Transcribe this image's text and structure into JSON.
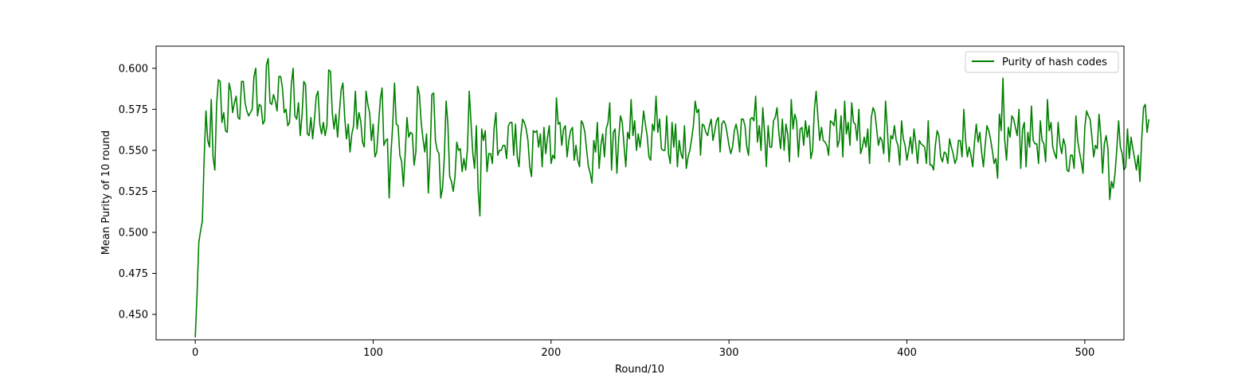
{
  "chart_data": {
    "type": "line",
    "title": "",
    "xlabel": "Round/10",
    "ylabel": "Mean Purity of 10 round",
    "xlim": [
      -22,
      522
    ],
    "ylim": [
      0.4345,
      0.6135
    ],
    "xticks": [
      0,
      100,
      200,
      300,
      400,
      500
    ],
    "yticks": [
      0.45,
      0.475,
      0.5,
      0.525,
      0.55,
      0.575,
      0.6
    ],
    "grid": false,
    "legend_position": "top-right",
    "colors": {
      "series": "#008000"
    },
    "series": [
      {
        "name": "Purity of hash codes",
        "x_start": 0,
        "x_step": 1,
        "values": [
          0.436,
          0.462,
          0.494,
          0.501,
          0.507,
          0.545,
          0.574,
          0.556,
          0.552,
          0.581,
          0.546,
          0.538,
          0.578,
          0.593,
          0.592,
          0.567,
          0.573,
          0.562,
          0.561,
          0.591,
          0.586,
          0.573,
          0.579,
          0.583,
          0.57,
          0.569,
          0.592,
          0.592,
          0.579,
          0.574,
          0.571,
          0.573,
          0.575,
          0.595,
          0.6,
          0.571,
          0.578,
          0.577,
          0.566,
          0.568,
          0.602,
          0.606,
          0.579,
          0.578,
          0.584,
          0.58,
          0.574,
          0.595,
          0.595,
          0.588,
          0.573,
          0.575,
          0.565,
          0.567,
          0.59,
          0.6,
          0.571,
          0.569,
          0.579,
          0.559,
          0.571,
          0.592,
          0.59,
          0.56,
          0.559,
          0.57,
          0.557,
          0.569,
          0.583,
          0.586,
          0.566,
          0.56,
          0.567,
          0.559,
          0.565,
          0.599,
          0.598,
          0.573,
          0.563,
          0.572,
          0.558,
          0.573,
          0.587,
          0.591,
          0.57,
          0.557,
          0.566,
          0.549,
          0.56,
          0.565,
          0.586,
          0.563,
          0.573,
          0.568,
          0.555,
          0.552,
          0.586,
          0.578,
          0.573,
          0.556,
          0.566,
          0.546,
          0.549,
          0.565,
          0.581,
          0.588,
          0.553,
          0.556,
          0.557,
          0.521,
          0.548,
          0.566,
          0.591,
          0.566,
          0.565,
          0.547,
          0.543,
          0.528,
          0.548,
          0.57,
          0.558,
          0.561,
          0.56,
          0.541,
          0.549,
          0.589,
          0.584,
          0.567,
          0.557,
          0.549,
          0.56,
          0.524,
          0.546,
          0.584,
          0.585,
          0.556,
          0.55,
          0.548,
          0.521,
          0.527,
          0.546,
          0.58,
          0.566,
          0.534,
          0.531,
          0.525,
          0.534,
          0.555,
          0.55,
          0.551,
          0.537,
          0.545,
          0.538,
          0.551,
          0.586,
          0.567,
          0.548,
          0.539,
          0.565,
          0.526,
          0.51,
          0.563,
          0.556,
          0.562,
          0.537,
          0.548,
          0.548,
          0.542,
          0.564,
          0.573,
          0.547,
          0.55,
          0.55,
          0.553,
          0.553,
          0.545,
          0.565,
          0.567,
          0.567,
          0.547,
          0.566,
          0.546,
          0.54,
          0.559,
          0.569,
          0.567,
          0.563,
          0.556,
          0.54,
          0.534,
          0.562,
          0.561,
          0.562,
          0.552,
          0.56,
          0.54,
          0.564,
          0.548,
          0.558,
          0.565,
          0.542,
          0.547,
          0.545,
          0.582,
          0.566,
          0.567,
          0.553,
          0.563,
          0.565,
          0.546,
          0.556,
          0.562,
          0.564,
          0.544,
          0.553,
          0.544,
          0.54,
          0.568,
          0.566,
          0.561,
          0.55,
          0.54,
          0.536,
          0.53,
          0.556,
          0.549,
          0.567,
          0.539,
          0.553,
          0.56,
          0.546,
          0.563,
          0.567,
          0.579,
          0.538,
          0.561,
          0.563,
          0.536,
          0.557,
          0.571,
          0.567,
          0.553,
          0.54,
          0.561,
          0.557,
          0.581,
          0.559,
          0.568,
          0.55,
          0.56,
          0.552,
          0.561,
          0.574,
          0.566,
          0.559,
          0.546,
          0.544,
          0.566,
          0.562,
          0.583,
          0.561,
          0.569,
          0.551,
          0.55,
          0.55,
          0.571,
          0.548,
          0.542,
          0.567,
          0.552,
          0.566,
          0.54,
          0.556,
          0.548,
          0.545,
          0.565,
          0.539,
          0.546,
          0.55,
          0.557,
          0.565,
          0.58,
          0.573,
          0.575,
          0.547,
          0.566,
          0.565,
          0.561,
          0.559,
          0.565,
          0.569,
          0.556,
          0.562,
          0.568,
          0.57,
          0.549,
          0.566,
          0.568,
          0.566,
          0.56,
          0.553,
          0.548,
          0.552,
          0.562,
          0.566,
          0.56,
          0.549,
          0.569,
          0.569,
          0.565,
          0.552,
          0.547,
          0.569,
          0.57,
          0.568,
          0.583,
          0.555,
          0.565,
          0.55,
          0.576,
          0.561,
          0.54,
          0.565,
          0.552,
          0.552,
          0.568,
          0.57,
          0.576,
          0.561,
          0.551,
          0.569,
          0.55,
          0.566,
          0.56,
          0.543,
          0.581,
          0.563,
          0.572,
          0.568,
          0.546,
          0.563,
          0.564,
          0.553,
          0.568,
          0.558,
          0.565,
          0.545,
          0.55,
          0.575,
          0.586,
          0.57,
          0.556,
          0.564,
          0.556,
          0.555,
          0.553,
          0.547,
          0.568,
          0.567,
          0.565,
          0.575,
          0.552,
          0.556,
          0.571,
          0.546,
          0.58,
          0.56,
          0.567,
          0.553,
          0.579,
          0.567,
          0.566,
          0.556,
          0.575,
          0.548,
          0.552,
          0.558,
          0.552,
          0.563,
          0.542,
          0.57,
          0.576,
          0.573,
          0.563,
          0.553,
          0.558,
          0.556,
          0.548,
          0.58,
          0.563,
          0.543,
          0.559,
          0.557,
          0.565,
          0.556,
          0.553,
          0.541,
          0.568,
          0.557,
          0.553,
          0.544,
          0.55,
          0.558,
          0.548,
          0.563,
          0.554,
          0.542,
          0.556,
          0.554,
          0.553,
          0.552,
          0.542,
          0.568,
          0.541,
          0.541,
          0.538,
          0.553,
          0.562,
          0.559,
          0.546,
          0.543,
          0.549,
          0.548,
          0.542,
          0.557,
          0.552,
          0.548,
          0.542,
          0.545,
          0.556,
          0.556,
          0.546,
          0.575,
          0.556,
          0.546,
          0.552,
          0.547,
          0.54,
          0.555,
          0.566,
          0.555,
          0.561,
          0.549,
          0.54,
          0.553,
          0.565,
          0.562,
          0.557,
          0.55,
          0.542,
          0.545,
          0.533,
          0.572,
          0.562,
          0.594,
          0.556,
          0.544,
          0.564,
          0.558,
          0.571,
          0.569,
          0.564,
          0.559,
          0.575,
          0.539,
          0.563,
          0.567,
          0.54,
          0.561,
          0.552,
          0.577,
          0.556,
          0.554,
          0.554,
          0.542,
          0.568,
          0.556,
          0.554,
          0.543,
          0.581,
          0.562,
          0.567,
          0.552,
          0.548,
          0.545,
          0.567,
          0.554,
          0.548,
          0.557,
          0.553,
          0.538,
          0.537,
          0.547,
          0.547,
          0.539,
          0.571,
          0.556,
          0.549,
          0.543,
          0.536,
          0.564,
          0.574,
          0.571,
          0.569,
          0.558,
          0.546,
          0.553,
          0.551,
          0.572,
          0.559,
          0.536,
          0.554,
          0.559,
          0.551,
          0.52,
          0.531,
          0.527,
          0.536,
          0.551,
          0.568,
          0.552,
          0.548,
          0.538,
          0.54,
          0.563,
          0.545,
          0.558,
          0.551,
          0.545,
          0.538,
          0.547,
          0.531,
          0.557,
          0.576,
          0.578,
          0.561,
          0.569
        ]
      }
    ]
  }
}
